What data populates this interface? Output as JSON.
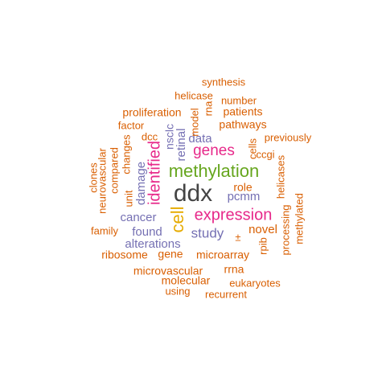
{
  "colors": {
    "orange": "#d95f02",
    "purple": "#7570b3",
    "magenta": "#e7298a",
    "green": "#66a61e",
    "gold": "#e6ab02",
    "gray": "#666666",
    "dark": "#444444"
  },
  "words": [
    {
      "text": "ddx",
      "color": "dark",
      "rotate": false
    },
    {
      "text": "methylation",
      "color": "green",
      "rotate": false
    },
    {
      "text": "expression",
      "color": "magenta",
      "rotate": false
    },
    {
      "text": "cell",
      "color": "gold",
      "rotate": true
    },
    {
      "text": "identified",
      "color": "magenta",
      "rotate": true
    },
    {
      "text": "genes",
      "color": "magenta",
      "rotate": false
    },
    {
      "text": "study",
      "color": "purple",
      "rotate": false
    },
    {
      "text": "cancer",
      "color": "purple",
      "rotate": false
    },
    {
      "text": "alterations",
      "color": "purple",
      "rotate": false
    },
    {
      "text": "found",
      "color": "purple",
      "rotate": false
    },
    {
      "text": "data",
      "color": "purple",
      "rotate": false
    },
    {
      "text": "pcmm",
      "color": "purple",
      "rotate": false
    },
    {
      "text": "damage",
      "color": "purple",
      "rotate": true
    },
    {
      "text": "retinal",
      "color": "purple",
      "rotate": true
    },
    {
      "text": "nsclc",
      "color": "purple",
      "rotate": true
    },
    {
      "text": "synthesis",
      "color": "orange",
      "rotate": false
    },
    {
      "text": "helicase",
      "color": "orange",
      "rotate": false
    },
    {
      "text": "number",
      "color": "orange",
      "rotate": false
    },
    {
      "text": "rna",
      "color": "orange",
      "rotate": true
    },
    {
      "text": "proliferation",
      "color": "orange",
      "rotate": false
    },
    {
      "text": "patients",
      "color": "orange",
      "rotate": false
    },
    {
      "text": "model",
      "color": "orange",
      "rotate": true
    },
    {
      "text": "factor",
      "color": "orange",
      "rotate": false
    },
    {
      "text": "pathways",
      "color": "orange",
      "rotate": false
    },
    {
      "text": "dcc",
      "color": "orange",
      "rotate": false
    },
    {
      "text": "previously",
      "color": "orange",
      "rotate": false
    },
    {
      "text": "cells",
      "color": "orange",
      "rotate": true
    },
    {
      "text": "ccgi",
      "color": "orange",
      "rotate": false
    },
    {
      "text": "neurovascular",
      "color": "orange",
      "rotate": true
    },
    {
      "text": "compared",
      "color": "orange",
      "rotate": true
    },
    {
      "text": "changes",
      "color": "orange",
      "rotate": true
    },
    {
      "text": "clones",
      "color": "orange",
      "rotate": true
    },
    {
      "text": "unit",
      "color": "orange",
      "rotate": true
    },
    {
      "text": "role",
      "color": "orange",
      "rotate": false
    },
    {
      "text": "helicases",
      "color": "orange",
      "rotate": true
    },
    {
      "text": "methylated",
      "color": "orange",
      "rotate": true
    },
    {
      "text": "processing",
      "color": "orange",
      "rotate": true
    },
    {
      "text": "novel",
      "color": "orange",
      "rotate": false
    },
    {
      "text": "family",
      "color": "orange",
      "rotate": false
    },
    {
      "text": "±",
      "color": "orange",
      "rotate": false
    },
    {
      "text": "rpib",
      "color": "orange",
      "rotate": true
    },
    {
      "text": "ribosome",
      "color": "orange",
      "rotate": false
    },
    {
      "text": "gene",
      "color": "orange",
      "rotate": false
    },
    {
      "text": "microarray",
      "color": "orange",
      "rotate": false
    },
    {
      "text": "microvascular",
      "color": "orange",
      "rotate": false
    },
    {
      "text": "rrna",
      "color": "orange",
      "rotate": false
    },
    {
      "text": "molecular",
      "color": "orange",
      "rotate": false
    },
    {
      "text": "eukaryotes",
      "color": "orange",
      "rotate": false
    },
    {
      "text": "using",
      "color": "orange",
      "rotate": false
    },
    {
      "text": "recurrent",
      "color": "orange",
      "rotate": false
    }
  ]
}
